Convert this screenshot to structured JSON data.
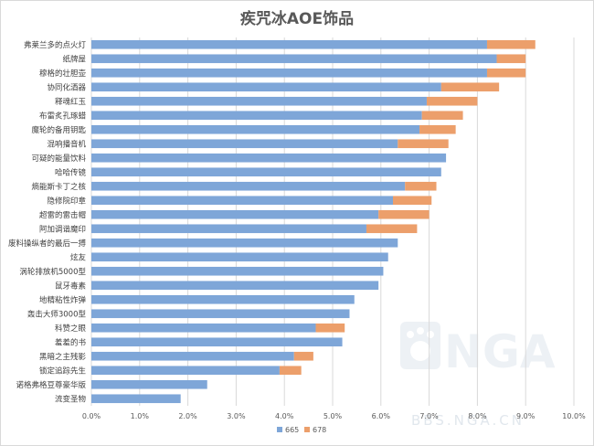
{
  "chart_data": {
    "type": "bar",
    "orientation": "horizontal",
    "stacked": true,
    "title": "疾咒冰AOE饰品",
    "categories": [
      "弗莱兰多的点火灯",
      "纸牌屋",
      "穆格的壮胆壶",
      "协同化酒器",
      "释魂红玉",
      "布雷炙孔琢蜡",
      "魔轮的备用钥匙",
      "混响播音机",
      "可疑的能量饮料",
      "哈哈传镜",
      "熵能斯卡丁之核",
      "隐修院印章",
      "超雷的雷击帽",
      "阿加调谐魔印",
      "废料操纵者的最后一搏",
      "炫友",
      "涡轮排放机5000型",
      "鼠牙毒素",
      "地精粘性炸弹",
      "轰击大师3000型",
      "科赞之眼",
      "羞羞的书",
      "黑暗之主残影",
      "锁定追踪先生",
      "诺格弗格豆尊豪华版",
      "流变圣物"
    ],
    "series": [
      {
        "name": "665",
        "color": "#7ea6d8",
        "values": [
          8.2,
          8.4,
          8.2,
          7.25,
          6.95,
          6.85,
          6.8,
          6.35,
          7.35,
          7.25,
          6.5,
          6.25,
          5.95,
          5.7,
          6.35,
          6.15,
          6.05,
          5.95,
          5.45,
          5.35,
          4.65,
          5.2,
          4.2,
          3.9,
          2.4,
          1.85
        ]
      },
      {
        "name": "678",
        "color": "#ec9f6b",
        "values": [
          1.0,
          0.6,
          0.8,
          1.2,
          1.05,
          0.85,
          0.75,
          1.05,
          0,
          0,
          0.65,
          0.8,
          1.05,
          1.05,
          0,
          0,
          0,
          0,
          0,
          0,
          0.6,
          0,
          0.4,
          0.45,
          0,
          0
        ]
      }
    ],
    "x_ticks": [
      "0.0%",
      "1.0%",
      "2.0%",
      "3.0%",
      "4.0%",
      "5.0%",
      "6.0%",
      "7.0%",
      "8.0%",
      "9.0%",
      "10.0%"
    ],
    "xlim": [
      0,
      10
    ],
    "grid": true,
    "legend": "bottom"
  },
  "watermark": {
    "logo_text": "NGA",
    "url_text": "BBS.NGA.CN"
  }
}
